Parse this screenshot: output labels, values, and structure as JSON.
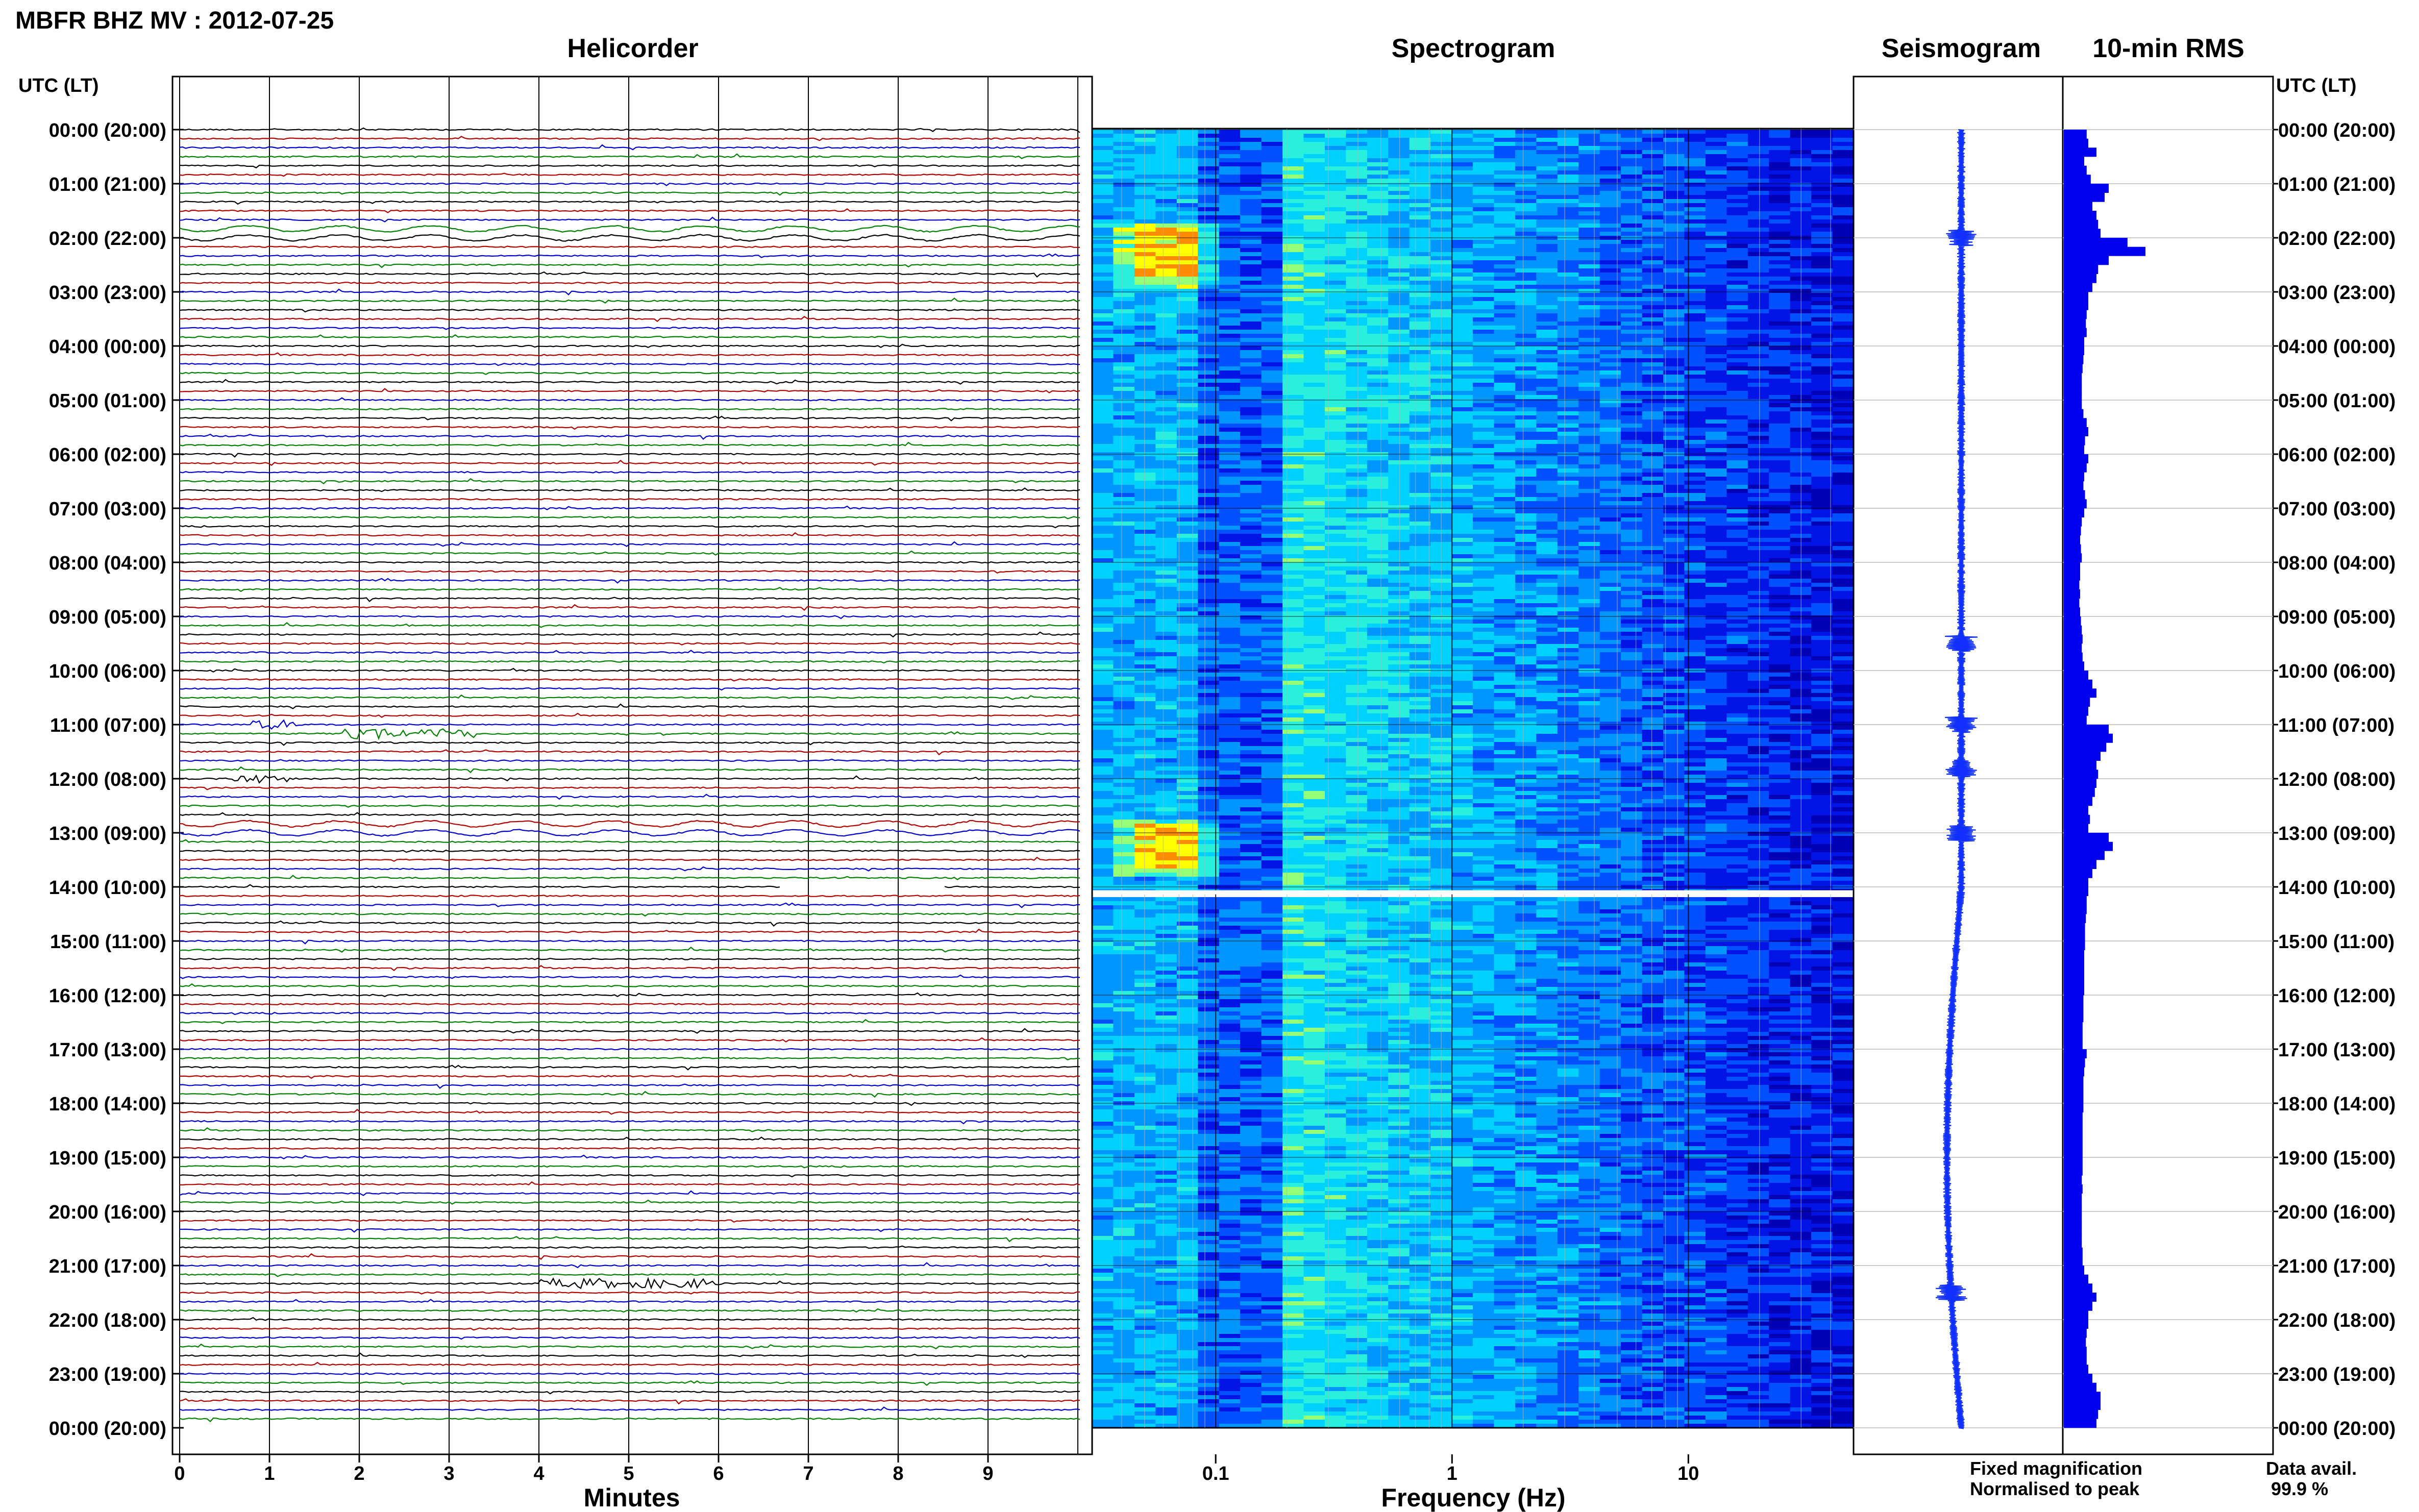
{
  "header": {
    "title": "MBFR BHZ MV : 2012-07-25"
  },
  "panels": {
    "helicorder": "Helicorder",
    "spectrogram": "Spectrogram",
    "seismogram": "Seismogram",
    "rms": "10-min RMS"
  },
  "axis_labels": {
    "time_left": "UTC (LT)",
    "time_right": "UTC (LT)",
    "minutes": "Minutes",
    "frequency": "Frequency (Hz)"
  },
  "legend": {
    "fixed": "Fixed magnification",
    "fixed_color": "#0000ff",
    "normalised": "Normalised to peak",
    "normalised_color": "#ff0000"
  },
  "data_avail": {
    "label": "Data avail.",
    "value": "99.9 %"
  },
  "time_ticks": [
    "00:00 (20:00)",
    "01:00 (21:00)",
    "02:00 (22:00)",
    "03:00 (23:00)",
    "04:00 (00:00)",
    "05:00 (01:00)",
    "06:00 (02:00)",
    "07:00 (03:00)",
    "08:00 (04:00)",
    "09:00 (05:00)",
    "10:00 (06:00)",
    "11:00 (07:00)",
    "12:00 (08:00)",
    "13:00 (09:00)",
    "14:00 (10:00)",
    "15:00 (11:00)",
    "16:00 (12:00)",
    "17:00 (13:00)",
    "18:00 (14:00)",
    "19:00 (15:00)",
    "20:00 (16:00)",
    "21:00 (17:00)",
    "22:00 (18:00)",
    "23:00 (19:00)",
    "00:00 (20:00)"
  ],
  "minutes_ticks": [
    "0",
    "1",
    "2",
    "3",
    "4",
    "5",
    "6",
    "7",
    "8",
    "9"
  ],
  "freq_ticks": [
    "0.1",
    "1",
    "10"
  ],
  "trace_colors": [
    "#000000",
    "#b00000",
    "#0000cc",
    "#008000"
  ],
  "chart_data": [
    {
      "type": "line",
      "panel": "Helicorder",
      "xlabel": "Minutes",
      "ylabel": "UTC (LT)",
      "xlim": [
        0,
        10
      ],
      "ylim_hours": [
        0,
        24
      ],
      "traces_per_hour": 6,
      "events": [
        {
          "hour": 1.83,
          "minute": 0.0,
          "duration_min": 10.0,
          "note": "long-period wave train"
        },
        {
          "hour": 2.0,
          "minute": 0.0,
          "duration_min": 10.0,
          "note": "long-period wave train"
        },
        {
          "hour": 11.0,
          "minute": 0.8,
          "duration_min": 0.5
        },
        {
          "hour": 11.17,
          "minute": 1.8,
          "duration_min": 1.5
        },
        {
          "hour": 12.0,
          "minute": 0.6,
          "duration_min": 0.6
        },
        {
          "hour": 12.83,
          "minute": 0.0,
          "duration_min": 10.0,
          "note": "long-period wave train"
        },
        {
          "hour": 13.0,
          "minute": 0.0,
          "duration_min": 10.0,
          "note": "long-period wave train"
        },
        {
          "hour": 21.33,
          "minute": 4.0,
          "duration_min": 2.0
        }
      ],
      "gap": {
        "hour": 14.0,
        "minute_start": 6.7,
        "minute_end": 8.5
      }
    },
    {
      "type": "heatmap",
      "panel": "Spectrogram",
      "xlabel": "Frequency (Hz)",
      "xscale": "log",
      "xlim": [
        0.03,
        50
      ],
      "ylim_hours": [
        0,
        24
      ],
      "hot_spots": [
        {
          "hour_start": 1.8,
          "hour_end": 2.7,
          "f_low": 0.05,
          "f_high": 0.08,
          "level": "high"
        },
        {
          "hour_start": 12.8,
          "hour_end": 13.6,
          "f_low": 0.05,
          "f_high": 0.08,
          "level": "high"
        }
      ],
      "gap_hour": 14.1
    },
    {
      "type": "line",
      "panel": "Seismogram",
      "ylim_hours": [
        0,
        24
      ],
      "bursts": [
        2.0,
        9.5,
        11.0,
        11.8,
        13.0,
        21.5
      ]
    },
    {
      "type": "bar",
      "panel": "10-min RMS",
      "orientation": "horizontal",
      "ylim_hours": [
        0,
        24
      ],
      "values": [
        0.28,
        0.3,
        0.4,
        0.25,
        0.28,
        0.33,
        0.55,
        0.5,
        0.35,
        0.4,
        0.42,
        0.45,
        0.78,
        1.0,
        0.55,
        0.42,
        0.4,
        0.35,
        0.3,
        0.3,
        0.28,
        0.27,
        0.28,
        0.25,
        0.25,
        0.24,
        0.23,
        0.22,
        0.22,
        0.22,
        0.22,
        0.24,
        0.28,
        0.3,
        0.26,
        0.25,
        0.3,
        0.28,
        0.25,
        0.24,
        0.26,
        0.28,
        0.25,
        0.22,
        0.21,
        0.2,
        0.21,
        0.22,
        0.2,
        0.2,
        0.19,
        0.2,
        0.19,
        0.2,
        0.21,
        0.22,
        0.23,
        0.22,
        0.23,
        0.25,
        0.3,
        0.35,
        0.4,
        0.32,
        0.3,
        0.28,
        0.55,
        0.6,
        0.52,
        0.45,
        0.4,
        0.42,
        0.4,
        0.38,
        0.35,
        0.3,
        0.32,
        0.3,
        0.55,
        0.6,
        0.5,
        0.4,
        0.35,
        0.3,
        0.3,
        0.28,
        0.28,
        0.27,
        0.26,
        0.26,
        0.26,
        0.25,
        0.25,
        0.25,
        0.25,
        0.25,
        0.24,
        0.24,
        0.24,
        0.23,
        0.23,
        0.23,
        0.28,
        0.26,
        0.25,
        0.24,
        0.24,
        0.24,
        0.24,
        0.23,
        0.23,
        0.23,
        0.23,
        0.23,
        0.23,
        0.23,
        0.22,
        0.23,
        0.22,
        0.22,
        0.22,
        0.22,
        0.22,
        0.22,
        0.23,
        0.23,
        0.25,
        0.3,
        0.35,
        0.4,
        0.35,
        0.3,
        0.3,
        0.28,
        0.27,
        0.28,
        0.28,
        0.3,
        0.35,
        0.4,
        0.45,
        0.45,
        0.42,
        0.4
      ]
    }
  ]
}
